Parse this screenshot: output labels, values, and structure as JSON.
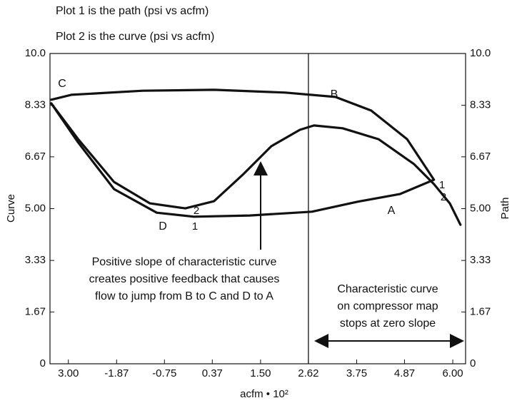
{
  "chart_data": {
    "type": "line",
    "notes": [
      "Plot 1 is the path (psi vs acfm)",
      "Plot 2 is the curve (psi vs acfm)"
    ],
    "y_label": "Curve",
    "y2_label": "Path",
    "x_label": "acfm • 10²",
    "xlim": [
      -3.43,
      6.3
    ],
    "ylim": [
      0,
      10
    ],
    "y2lim": [
      0,
      10
    ],
    "xticks": [
      {
        "value": -3.0,
        "label": "3.00"
      },
      -1.87,
      -0.75,
      0.37,
      {
        "value": 1.5,
        "label": "1.50"
      },
      2.62,
      3.75,
      4.87,
      {
        "value": 6.0,
        "label": "6.00"
      }
    ],
    "yticks": [
      0,
      1.67,
      3.33,
      {
        "value": 5,
        "label": "5.00"
      },
      6.67,
      8.33,
      {
        "value": 10,
        "label": "10.0"
      }
    ],
    "y2ticks": [
      0,
      1.67,
      3.33,
      {
        "value": 5,
        "label": "5.00"
      },
      6.67,
      8.33,
      {
        "value": 10,
        "label": "10.0"
      }
    ],
    "vline": 2.62,
    "series": [
      {
        "name": "1",
        "color": "#111111",
        "axis": "y2",
        "x": [
          -3.4,
          -2.93,
          -1.26,
          0.41,
          2.08,
          3.25,
          4.09,
          4.93,
          5.56,
          4.76,
          3.76,
          2.7,
          1.25,
          -0.06,
          -0.93,
          -1.93,
          -2.77,
          -3.4
        ],
        "values": [
          8.51,
          8.67,
          8.8,
          8.83,
          8.74,
          8.6,
          8.16,
          7.24,
          5.93,
          5.47,
          5.22,
          4.9,
          4.78,
          4.74,
          4.87,
          5.63,
          7.13,
          8.39
        ]
      },
      {
        "name": "2",
        "color": "#111111",
        "x": [
          -3.4,
          -2.77,
          -1.93,
          -1.09,
          -0.26,
          0.41,
          1.08,
          1.75,
          2.42,
          2.75,
          3.42,
          4.26,
          5.09,
          5.56,
          5.93,
          6.18
        ],
        "values": [
          8.39,
          7.24,
          5.86,
          5.17,
          5.01,
          5.24,
          6.09,
          7.01,
          7.54,
          7.68,
          7.59,
          7.24,
          6.44,
          5.79,
          5.17,
          4.48
        ]
      }
    ],
    "point_labels": [
      "C",
      "B",
      "A",
      "D"
    ],
    "annotations": [
      [
        "Positive slope of characteristic curve",
        "creates positive feedback that causes",
        "flow to jump  from B to C and D to A"
      ],
      [
        "Characteristic curve",
        "on compressor map",
        "stops at zero slope"
      ]
    ]
  }
}
